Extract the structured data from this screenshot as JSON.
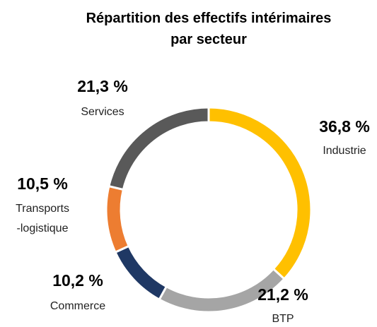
{
  "chart_data": {
    "type": "donut",
    "title": "Répartition des effectifs intérimaires\npar secteur",
    "categories": [
      "Industrie",
      "BTP",
      "Commerce",
      "Transports\n-logistique",
      "Services"
    ],
    "values": [
      36.8,
      21.2,
      10.2,
      10.5,
      21.3
    ],
    "value_labels": [
      "36,8 %",
      "21,2 %",
      "10,2 %",
      "10,5 %",
      "21,3 %"
    ],
    "colors": [
      "#FFC000",
      "#A5A5A5",
      "#1F3864",
      "#ED7D31",
      "#595959"
    ]
  }
}
